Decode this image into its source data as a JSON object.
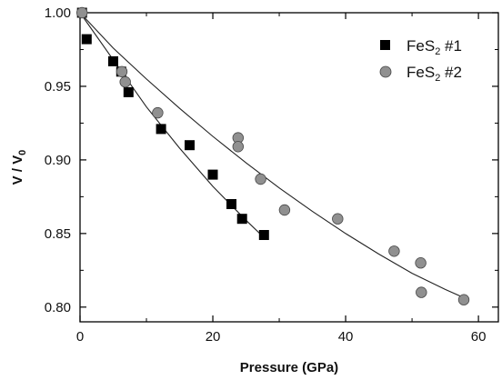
{
  "chart_data": {
    "type": "scatter",
    "xlabel": "Pressure (GPa)",
    "ylabel_main": "V / V",
    "ylabel_sub": "0",
    "xlim": [
      0,
      63
    ],
    "ylim": [
      0.79,
      1.0
    ],
    "xticks": [
      "0",
      "20",
      "40",
      "60"
    ],
    "yticks": [
      "0.80",
      "0.85",
      "0.90",
      "0.95",
      "1.00"
    ],
    "legend_position": "top-right",
    "series": [
      {
        "name": "FeS2 #1",
        "label_main": "FeS",
        "label_sub": "2",
        "label_suffix": " #1",
        "marker": "square",
        "color": "#000000",
        "points": [
          [
            0.3,
            1.0
          ],
          [
            1.0,
            0.982
          ],
          [
            5.0,
            0.967
          ],
          [
            6.2,
            0.96
          ],
          [
            7.3,
            0.946
          ],
          [
            12.2,
            0.921
          ],
          [
            16.5,
            0.91
          ],
          [
            20.0,
            0.89
          ],
          [
            22.8,
            0.87
          ],
          [
            24.4,
            0.86
          ],
          [
            27.7,
            0.849
          ]
        ],
        "fit": [
          [
            0,
            1.0
          ],
          [
            5,
            0.968
          ],
          [
            10,
            0.936
          ],
          [
            15,
            0.908
          ],
          [
            20,
            0.882
          ],
          [
            25,
            0.859
          ],
          [
            28,
            0.846
          ]
        ]
      },
      {
        "name": "FeS2 #2",
        "label_main": "FeS",
        "label_sub": "2",
        "label_suffix": " #2",
        "marker": "circle",
        "color": "#909090",
        "points": [
          [
            0.3,
            1.0
          ],
          [
            6.3,
            0.96
          ],
          [
            6.8,
            0.953
          ],
          [
            11.7,
            0.932
          ],
          [
            23.8,
            0.915
          ],
          [
            23.8,
            0.909
          ],
          [
            27.2,
            0.887
          ],
          [
            30.8,
            0.866
          ],
          [
            38.8,
            0.86
          ],
          [
            47.3,
            0.838
          ],
          [
            51.3,
            0.83
          ],
          [
            51.4,
            0.81
          ],
          [
            57.8,
            0.805
          ]
        ],
        "fit": [
          [
            0,
            1.0
          ],
          [
            5,
            0.976
          ],
          [
            10,
            0.955
          ],
          [
            15,
            0.935
          ],
          [
            20,
            0.916
          ],
          [
            25,
            0.898
          ],
          [
            30,
            0.881
          ],
          [
            35,
            0.865
          ],
          [
            40,
            0.85
          ],
          [
            45,
            0.836
          ],
          [
            50,
            0.823
          ],
          [
            55,
            0.812
          ],
          [
            58,
            0.806
          ]
        ]
      }
    ]
  }
}
